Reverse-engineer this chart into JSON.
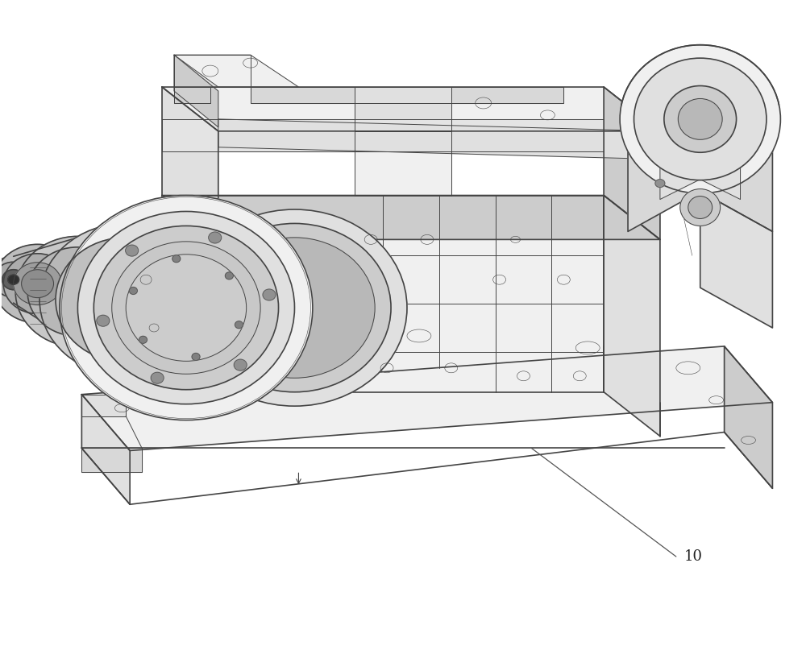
{
  "background_color": "#ffffff",
  "label_text": "10",
  "label_fontsize": 13,
  "line_color": "#555555",
  "fig_width": 10.0,
  "fig_height": 8.07,
  "drawing_line_color": "#444444",
  "fill_white": "#ffffff",
  "fill_light": "#f0f0f0",
  "fill_mid": "#e0e0e0",
  "fill_dark": "#cccccc",
  "fill_darker": "#b8b8b8",
  "lw_outer": 1.2,
  "lw_inner": 0.7,
  "lw_thin": 0.4,
  "img_extent": [
    0,
    1000,
    0,
    807
  ]
}
